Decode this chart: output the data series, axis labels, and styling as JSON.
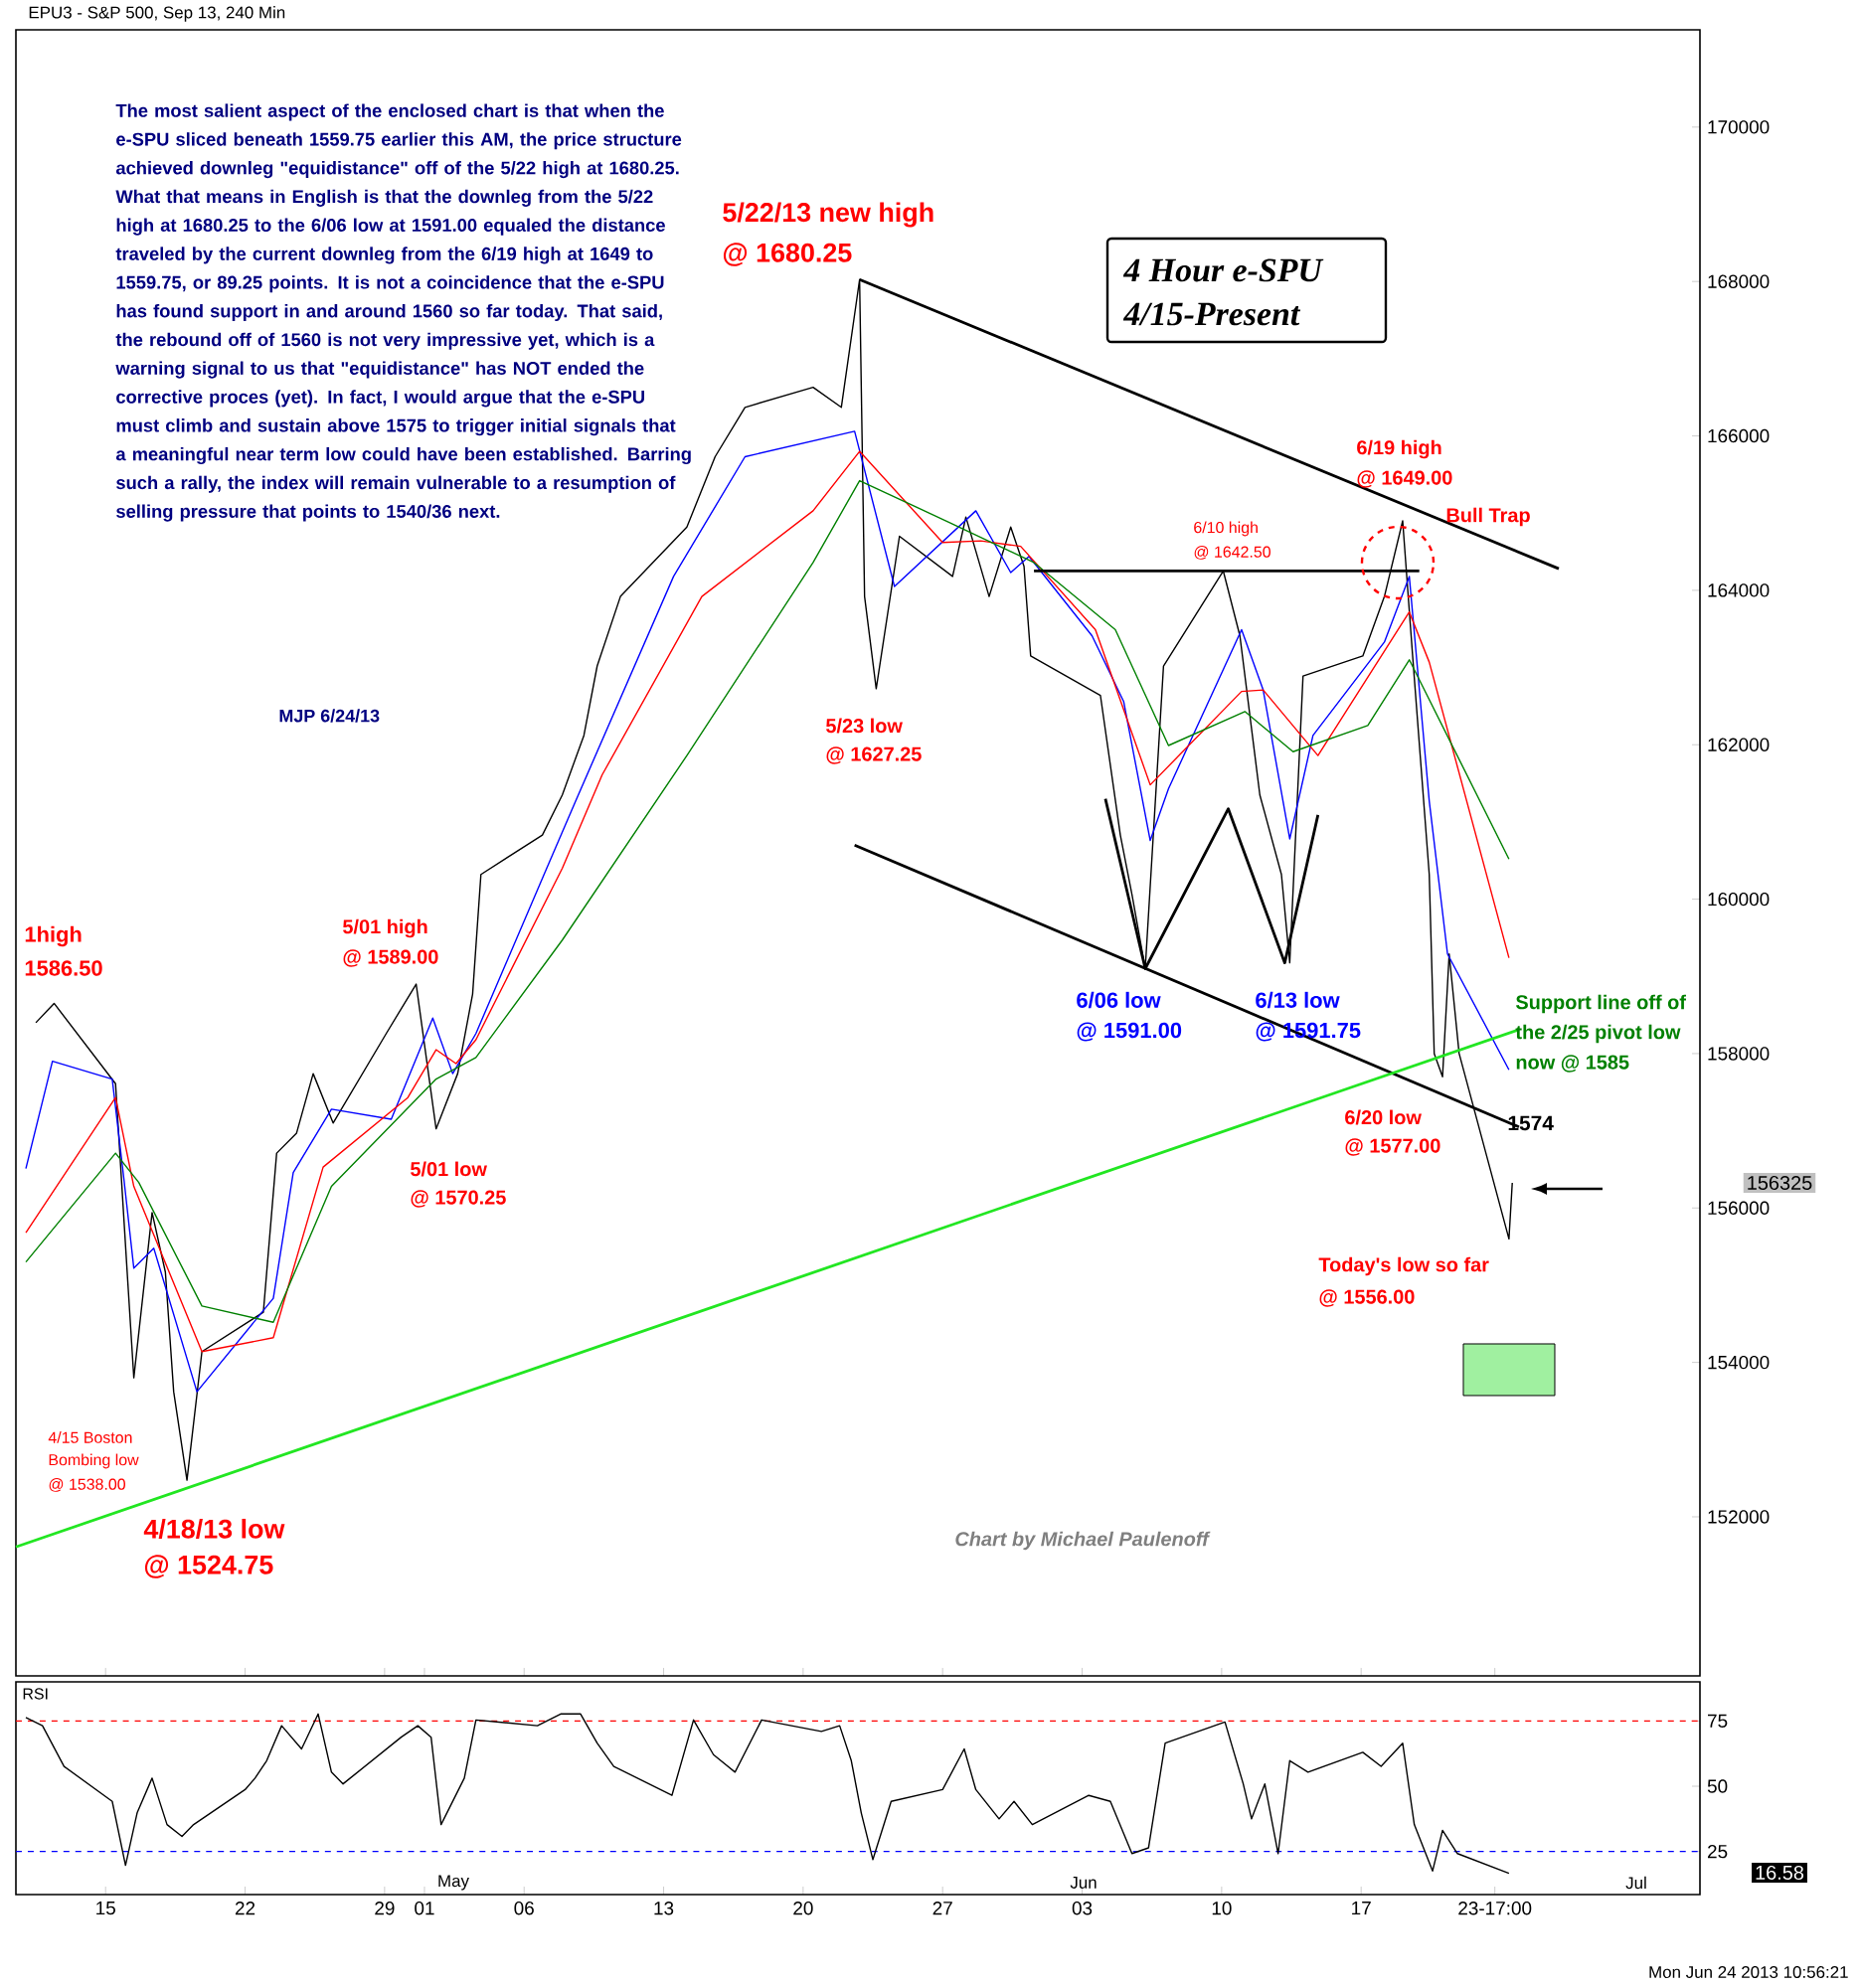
{
  "chart_data": [
    {
      "type": "line",
      "title": "EPU3 - S&P 500, Sep 13, 240 Min",
      "xlim": [
        "2013-04-10T12:00",
        "2013-07-04"
      ],
      "ylim": [
        149940,
        171260
      ],
      "xticks": [
        {
          "value": "2013-04-15",
          "label": null
        },
        {
          "value": "2013-04-22",
          "label": null
        },
        {
          "value": "2013-04-29",
          "label": null
        },
        {
          "value": "2013-05-01",
          "label": null
        },
        {
          "value": "2013-05-06",
          "label": null
        },
        {
          "value": "2013-05-13",
          "label": null
        },
        {
          "value": "2013-05-20",
          "label": null
        },
        {
          "value": "2013-05-27",
          "label": null
        },
        {
          "value": "2013-06-03",
          "label": null
        },
        {
          "value": "2013-06-10",
          "label": null
        },
        {
          "value": "2013-06-17",
          "label": null
        },
        {
          "value": "2013-06-23T17:00",
          "label": null
        }
      ],
      "yticks": [
        152000,
        154000,
        156000,
        158000,
        160000,
        162000,
        164000,
        166000,
        168000,
        170000
      ],
      "tick_labels": "y",
      "series": [
        {
          "color": "#000000",
          "x": [
            "2013-04-11T12:00",
            "2013-04-12T10:00",
            "2013-04-15T12:00",
            "2013-04-16T02:00",
            "2013-04-16T10:00",
            "2013-04-17T08:00",
            "2013-04-18T00:00",
            "2013-04-18T10:00",
            "2013-04-19T02:00",
            "2013-04-19T20:00",
            "2013-04-22T22:00",
            "2013-04-23T14:00",
            "2013-04-24T14:00",
            "2013-04-25T10:00",
            "2013-04-26T10:00",
            "2013-04-29T02:00",
            "2013-04-30T14:00",
            "2013-05-01T14:00",
            "2013-05-02T16:00",
            "2013-05-03T10:00",
            "2013-05-03T20:00",
            "2013-05-06T22:00",
            "2013-05-07T22:00",
            "2013-05-09T00:00",
            "2013-05-09T16:00",
            "2013-05-10T20:00",
            "2013-05-14T04:00",
            "2013-05-15T14:00",
            "2013-05-17T02:00",
            "2013-05-20T12:00",
            "2013-05-21T22:00",
            "2013-05-22T20:00",
            "2013-05-23T02:00",
            "2013-05-23T16:00",
            "2013-05-24T20:00",
            "2013-05-27T12:00",
            "2013-05-28T04:00",
            "2013-05-29T08:00",
            "2013-05-30T10:00",
            "2013-05-31T02:00",
            "2013-05-31T10:00",
            "2013-06-03T22:00",
            "2013-06-04T22:00",
            "2013-06-05T12:00",
            "2013-06-06T04:00",
            "2013-06-07T02:00",
            "2013-06-10T02:00",
            "2013-06-10T22:00",
            "2013-06-11T22:00",
            "2013-06-13T00:00",
            "2013-06-13T10:00",
            "2013-06-14T02:00",
            "2013-06-17T02:00",
            "2013-06-18T04:00",
            "2013-06-19T02:00",
            "2013-06-19T14:00",
            "2013-06-20T10:00",
            "2013-06-20T16:00",
            "2013-06-21T02:00",
            "2013-06-21T10:00",
            "2013-06-21T22:00",
            "2013-06-24T10:00",
            "2013-06-24T14:00"
          ],
          "values": [
            158400,
            158650,
            157610,
            155170,
            153800,
            155940,
            155170,
            153620,
            152475,
            154140,
            154650,
            156710,
            156970,
            157740,
            157100,
            158260,
            158900,
            157025,
            157740,
            158770,
            160320,
            160830,
            161350,
            162120,
            163020,
            163920,
            164820,
            165730,
            166370,
            166630,
            166370,
            168025,
            163920,
            162725,
            164700,
            164180,
            164950,
            163920,
            164820,
            164310,
            163150,
            162640,
            160830,
            160060,
            159100,
            163020,
            164250,
            163410,
            161350,
            160320,
            159175,
            162890,
            163150,
            163920,
            164900,
            163150,
            160320,
            158000,
            157700,
            159290,
            158000,
            155600,
            156325
          ]
        },
        {
          "color": "#0000ff",
          "x": [
            "2013-04-11T00:00",
            "2013-04-12T08:00",
            "2013-04-15T08:00",
            "2013-04-15T22:00",
            "2013-04-16T10:00",
            "2013-04-17T10:00",
            "2013-04-19T14:00",
            "2013-04-23T10:00",
            "2013-04-24T10:00",
            "2013-04-26T08:00",
            "2013-04-29T08:00",
            "2013-05-01T10:00",
            "2013-05-02T10:00",
            "2013-05-03T14:00",
            "2013-05-07T00:00",
            "2013-05-08T14:00",
            "2013-05-13T12:00",
            "2013-05-17T02:00",
            "2013-05-22T14:00",
            "2013-05-24T14:00",
            "2013-05-28T16:00",
            "2013-05-30T10:00",
            "2013-05-31T08:00",
            "2013-06-03T12:00",
            "2013-06-05T02:00",
            "2013-06-06T10:00",
            "2013-06-07T08:00",
            "2013-06-11T00:00",
            "2013-06-12T02:00",
            "2013-06-13T10:00",
            "2013-06-14T14:00",
            "2013-06-18T04:00",
            "2013-06-19T10:00",
            "2013-06-20T10:00",
            "2013-06-21T08:00",
            "2013-06-24T10:00"
          ],
          "values": [
            156510,
            157900,
            157670,
            156380,
            155220,
            155480,
            153620,
            154830,
            156460,
            157280,
            157150,
            158460,
            157740,
            158260,
            160320,
            161270,
            164180,
            165730,
            166060,
            164050,
            165030,
            164230,
            164440,
            163410,
            162560,
            160760,
            161430,
            163490,
            162710,
            160780,
            162120,
            163330,
            164180,
            161270,
            159290,
            157790
          ]
        },
        {
          "color": "#ff0000",
          "x": [
            "2013-04-11T00:00",
            "2013-04-15T12:00",
            "2013-04-16T10:00",
            "2013-04-19T20:00",
            "2013-04-23T10:00",
            "2013-04-25T22:00",
            "2013-04-30T04:00",
            "2013-05-01T14:00",
            "2013-05-02T14:00",
            "2013-05-03T14:00",
            "2013-05-07T22:00",
            "2013-05-09T22:00",
            "2013-05-14T22:00",
            "2013-05-20T12:00",
            "2013-05-22T20:00",
            "2013-05-27T00:00",
            "2013-05-28T22:00",
            "2013-05-30T22:00",
            "2013-06-03T16:00",
            "2013-06-06T10:00",
            "2013-06-11T00:00",
            "2013-06-12T02:00",
            "2013-06-14T20:00",
            "2013-06-19T10:00",
            "2013-06-20T10:00",
            "2013-06-24T10:00"
          ],
          "values": [
            155680,
            157430,
            156280,
            154140,
            154320,
            156530,
            157430,
            158050,
            157870,
            158180,
            160400,
            161610,
            163920,
            165030,
            165800,
            164620,
            164640,
            164570,
            163490,
            161480,
            162690,
            162710,
            161860,
            163720,
            163070,
            159240
          ]
        },
        {
          "color": "#008000",
          "x": [
            "2013-04-11T00:00",
            "2013-04-15T12:00",
            "2013-04-16T16:00",
            "2013-04-19T20:00",
            "2013-04-23T10:00",
            "2013-04-26T08:00",
            "2013-05-01T14:00",
            "2013-05-03T14:00",
            "2013-05-07T22:00",
            "2013-05-14T04:00",
            "2013-05-20T12:00",
            "2013-05-22T20:00",
            "2013-05-27T08:00",
            "2013-05-31T14:00",
            "2013-06-04T16:00",
            "2013-06-07T08:00",
            "2013-06-11T04:00",
            "2013-06-13T14:00",
            "2013-06-17T08:00",
            "2013-06-19T10:00",
            "2013-06-24T10:00"
          ],
          "values": [
            155300,
            156710,
            156330,
            154730,
            154520,
            156280,
            157670,
            157950,
            159470,
            161860,
            164360,
            165420,
            164880,
            164360,
            163490,
            161990,
            162430,
            161910,
            162250,
            163100,
            160520
          ]
        },
        {
          "color": "#000000",
          "x": [
            "2013-05-22T20:00",
            "2013-06-26T22:00"
          ],
          "values": [
            168025,
            164280
          ]
        },
        {
          "color": "#000000",
          "x": [
            "2013-05-31T14:00",
            "2013-06-19T22:00"
          ],
          "values": [
            164250,
            164250
          ]
        },
        {
          "color": "#000000",
          "x": [
            "2013-05-22T14:00",
            "2013-06-24T22:00"
          ],
          "values": [
            160700,
            157050
          ]
        },
        {
          "color": "#000000",
          "x": [
            "2013-06-04T04:00",
            "2013-06-06T04:00",
            "2013-06-10T08:00",
            "2013-06-13T04:00",
            "2013-06-14T20:00"
          ],
          "values": [
            161300,
            159100,
            161170,
            159175,
            161090
          ]
        },
        {
          "color": "#22e622",
          "x": [
            "2013-04-10T12:00",
            "2013-06-24T22:00"
          ],
          "values": [
            151610,
            158310
          ]
        }
      ],
      "annotations": [
        "The most salient aspect of the enclosed chart is that when the e-SPU sliced beneath 1559.75 earlier this AM, the price structure achieved downleg \"equidistance\" off of the 5/22 high at 1680.25. What that means in English is that the downleg from the 5/22 high at 1680.25 to the 6/06 low at 1591.00 equaled the distance traveled by the current downleg from the 6/19 high at 1649 to 1559.75, or 89.25 points. It is not a coincidence that the e-SPU has found support in and around 1560 so far today. That said, the rebound off of 1560 is not very impressive yet, which is a warning signal to us that \"equidistance\" has NOT ended the corrective proces (yet). In fact, I would argue that the e-SPU must climb and sustain above 1575 to trigger initial signals that a meaningful near term low could have been established. Barring such a rally, the index will remain vulnerable to a resumption of selling pressure that points to 1540/36 next.",
        "MJP 6/24/13",
        "4 Hour e-SPU",
        "4/15-Present",
        "156325",
        "5/22/13 new high",
        "@ 1680.25",
        "5/23 low",
        "@ 1627.25",
        "6/10 high",
        "@ 1642.50",
        "6/19 high",
        "@ 1649.00",
        "Bull Trap",
        "6/06 low",
        "@ 1591.00",
        "6/13 low",
        "@ 1591.75",
        "6/20 low",
        "@ 1577.00",
        "1574",
        "Today's low so far",
        "@ 1556.00",
        "Support line off of",
        "the 2/25 pivot low",
        "now @ 1585",
        "5/01 high",
        "@ 1589.00",
        "5/01 low",
        "@ 1570.25",
        "1high",
        "1586.50",
        "4/15 Boston",
        "Bombing low",
        "@ 1538.00",
        "4/18/13 low",
        "@ 1524.75",
        "Chart by Michael Paulenoff"
      ]
    },
    {
      "type": "line",
      "xlim": [
        "2013-04-10T12:00",
        "2013-07-04"
      ],
      "ylim": [
        8.5,
        90
      ],
      "xticks": [
        {
          "value": "2013-04-15",
          "label": "15"
        },
        {
          "value": "2013-04-22",
          "label": "22"
        },
        {
          "value": "2013-04-29",
          "label": "29"
        },
        {
          "value": "2013-05-01",
          "label": "01"
        },
        {
          "value": "2013-05-06",
          "label": "06"
        },
        {
          "value": "2013-05-13",
          "label": "13"
        },
        {
          "value": "2013-05-20",
          "label": "20"
        },
        {
          "value": "2013-05-27",
          "label": "27"
        },
        {
          "value": "2013-06-03",
          "label": "03"
        },
        {
          "value": "2013-06-10",
          "label": "10"
        },
        {
          "value": "2013-06-17",
          "label": "17"
        },
        {
          "value": "2013-06-23T17:00",
          "label": "23-17:00"
        }
      ],
      "yticks": [
        25,
        50,
        75
      ],
      "series": [
        {
          "color": "#000000",
          "x": [
            "2013-04-11T00:00",
            "2013-04-11T20:00",
            "2013-04-12T22:00",
            "2013-04-15T08:00",
            "2013-04-16T00:00",
            "2013-04-16T14:00",
            "2013-04-17T08:00",
            "2013-04-18T02:00",
            "2013-04-18T20:00",
            "2013-04-19T10:00",
            "2013-04-22T00:00",
            "2013-04-22T12:00",
            "2013-04-23T02:00",
            "2013-04-23T20:00",
            "2013-04-24T20:00",
            "2013-04-25T16:00",
            "2013-04-26T08:00",
            "2013-04-26T22:00",
            "2013-04-29T20:00",
            "2013-04-30T16:00",
            "2013-05-01T08:00",
            "2013-05-01T20:00",
            "2013-05-02T10:00",
            "2013-05-03T00:00",
            "2013-05-03T14:00",
            "2013-05-06T16:00",
            "2013-05-07T20:00",
            "2013-05-08T20:00",
            "2013-05-09T16:00",
            "2013-05-10T12:00",
            "2013-05-13T10:00",
            "2013-05-14T12:00",
            "2013-05-15T12:00",
            "2013-05-16T14:00",
            "2013-05-17T22:00",
            "2013-05-20T22:00",
            "2013-05-21T20:00",
            "2013-05-22T10:00",
            "2013-05-22T22:00",
            "2013-05-23T12:00",
            "2013-05-24T10:00",
            "2013-05-27T00:00",
            "2013-05-28T02:00",
            "2013-05-28T16:00",
            "2013-05-29T20:00",
            "2013-05-30T14:00",
            "2013-05-31T12:00",
            "2013-06-03T08:00",
            "2013-06-04T10:00",
            "2013-06-05T12:00",
            "2013-06-06T08:00",
            "2013-06-07T04:00",
            "2013-06-10T04:00",
            "2013-06-11T02:00",
            "2013-06-11T12:00",
            "2013-06-12T04:00",
            "2013-06-12T20:00",
            "2013-06-13T10:00",
            "2013-06-14T08:00",
            "2013-06-17T02:00",
            "2013-06-18T00:00",
            "2013-06-19T02:00",
            "2013-06-19T16:00",
            "2013-06-20T14:00",
            "2013-06-21T02:00",
            "2013-06-21T20:00",
            "2013-06-24T10:00"
          ],
          "values": [
            76.3,
            73.2,
            57.6,
            44.2,
            19.7,
            39.8,
            53.1,
            35.3,
            30.8,
            35.3,
            48.7,
            53.1,
            59.8,
            73.2,
            64.3,
            77.7,
            55.4,
            50.9,
            68.8,
            73.2,
            68.8,
            35.3,
            44.2,
            53.1,
            75.4,
            73.2,
            77.7,
            77.7,
            66.5,
            57.6,
            46.5,
            75.4,
            62.1,
            55.4,
            75.4,
            71.0,
            73.2,
            59.8,
            39.8,
            21.9,
            44.2,
            48.7,
            64.3,
            48.7,
            37.5,
            44.2,
            35.3,
            46.5,
            44.2,
            24.2,
            26.4,
            66.5,
            74.6,
            50.9,
            37.5,
            50.9,
            24.2,
            59.8,
            55.4,
            63.0,
            57.6,
            66.5,
            35.3,
            17.5,
            33.1,
            24.2,
            16.6
          ]
        }
      ],
      "ref_lines": [
        {
          "axis": "y",
          "value": 75,
          "color": "#ff0000",
          "line_style": "dashed"
        },
        {
          "axis": "y",
          "value": 25,
          "color": "#0000ff",
          "line_style": "dashed"
        }
      ],
      "annotations": [
        "RSI",
        "16.58",
        "Mon Jun 24 2013 10:56:21",
        "May",
        "Jun",
        "Jul"
      ]
    }
  ]
}
